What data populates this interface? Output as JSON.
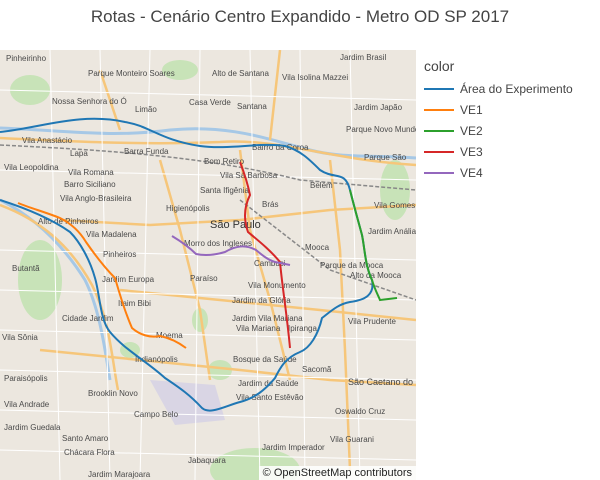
{
  "title": "Rotas - Cenário Centro Expandido - Metro OD SP 2017",
  "legend": {
    "title": "color",
    "items": [
      {
        "label": "Área do Experimento",
        "color": "#1f77b4"
      },
      {
        "label": "VE1",
        "color": "#ff7f0e"
      },
      {
        "label": "VE2",
        "color": "#2ca02c"
      },
      {
        "label": "VE3",
        "color": "#d62728"
      },
      {
        "label": "VE4",
        "color": "#9467bd"
      }
    ]
  },
  "attribution": "© OpenStreetMap contributors",
  "places": [
    "Pinheirinho",
    "Parque Monteiro Soares",
    "Alto de Santana",
    "Jardim Brasil",
    "Vila Isolina Mazzei",
    "Nossa Senhora do Ó",
    "Limão",
    "Casa Verde",
    "Santana",
    "Vila Anastácio",
    "Lapa",
    "Barra Funda",
    "Bom Retiro",
    "Belém",
    "Vila Romana",
    "Barro Siciliano",
    "Vila Anglo-Brasileira",
    "Higienópolis",
    "Brás",
    "Pinheiros",
    "São Paulo",
    "Cambuci",
    "Mooca",
    "Vila Gomes Cardim",
    "Parque da Mooca",
    "Vila Monumento",
    "Jardim da Glória",
    "Vila Mariana",
    "Ipiranga",
    "Vila Prudente",
    "Indianópolis",
    "Bosque da Saúde",
    "Jardim da Saúde",
    "Vila Santo Estêvão",
    "Sacomã",
    "São Caetano do Sul",
    "Campo Belo",
    "Brooklin Novo",
    "Santo Amaro",
    "Jabaquara",
    "Jardim Imperador",
    "Oswaldo Cruz",
    "Vila Madalena",
    "Butantã",
    "Jardim Europa",
    "Itaim Bibi",
    "Moema",
    "Cidade Jardim",
    "Alto de Pinheiros",
    "Morro dos Ingleses",
    "Paraíso",
    "Jardim Vila Mariana",
    "Vila Sá Barbosa",
    "Santa Ifigênia",
    "Bairro da Coroa",
    "Jardim Japão",
    "Parque São",
    "Jardim Anália Franco",
    "Vila Sônia",
    "Paraisópolis",
    "Chácara Flora",
    "Vila Leopoldina",
    "Parque Novo Mundo",
    "Alto da Mooca",
    "Vila Andrade",
    "Jardim Marajoara",
    "Jardim Guedala",
    "Vila Guarani"
  ]
}
